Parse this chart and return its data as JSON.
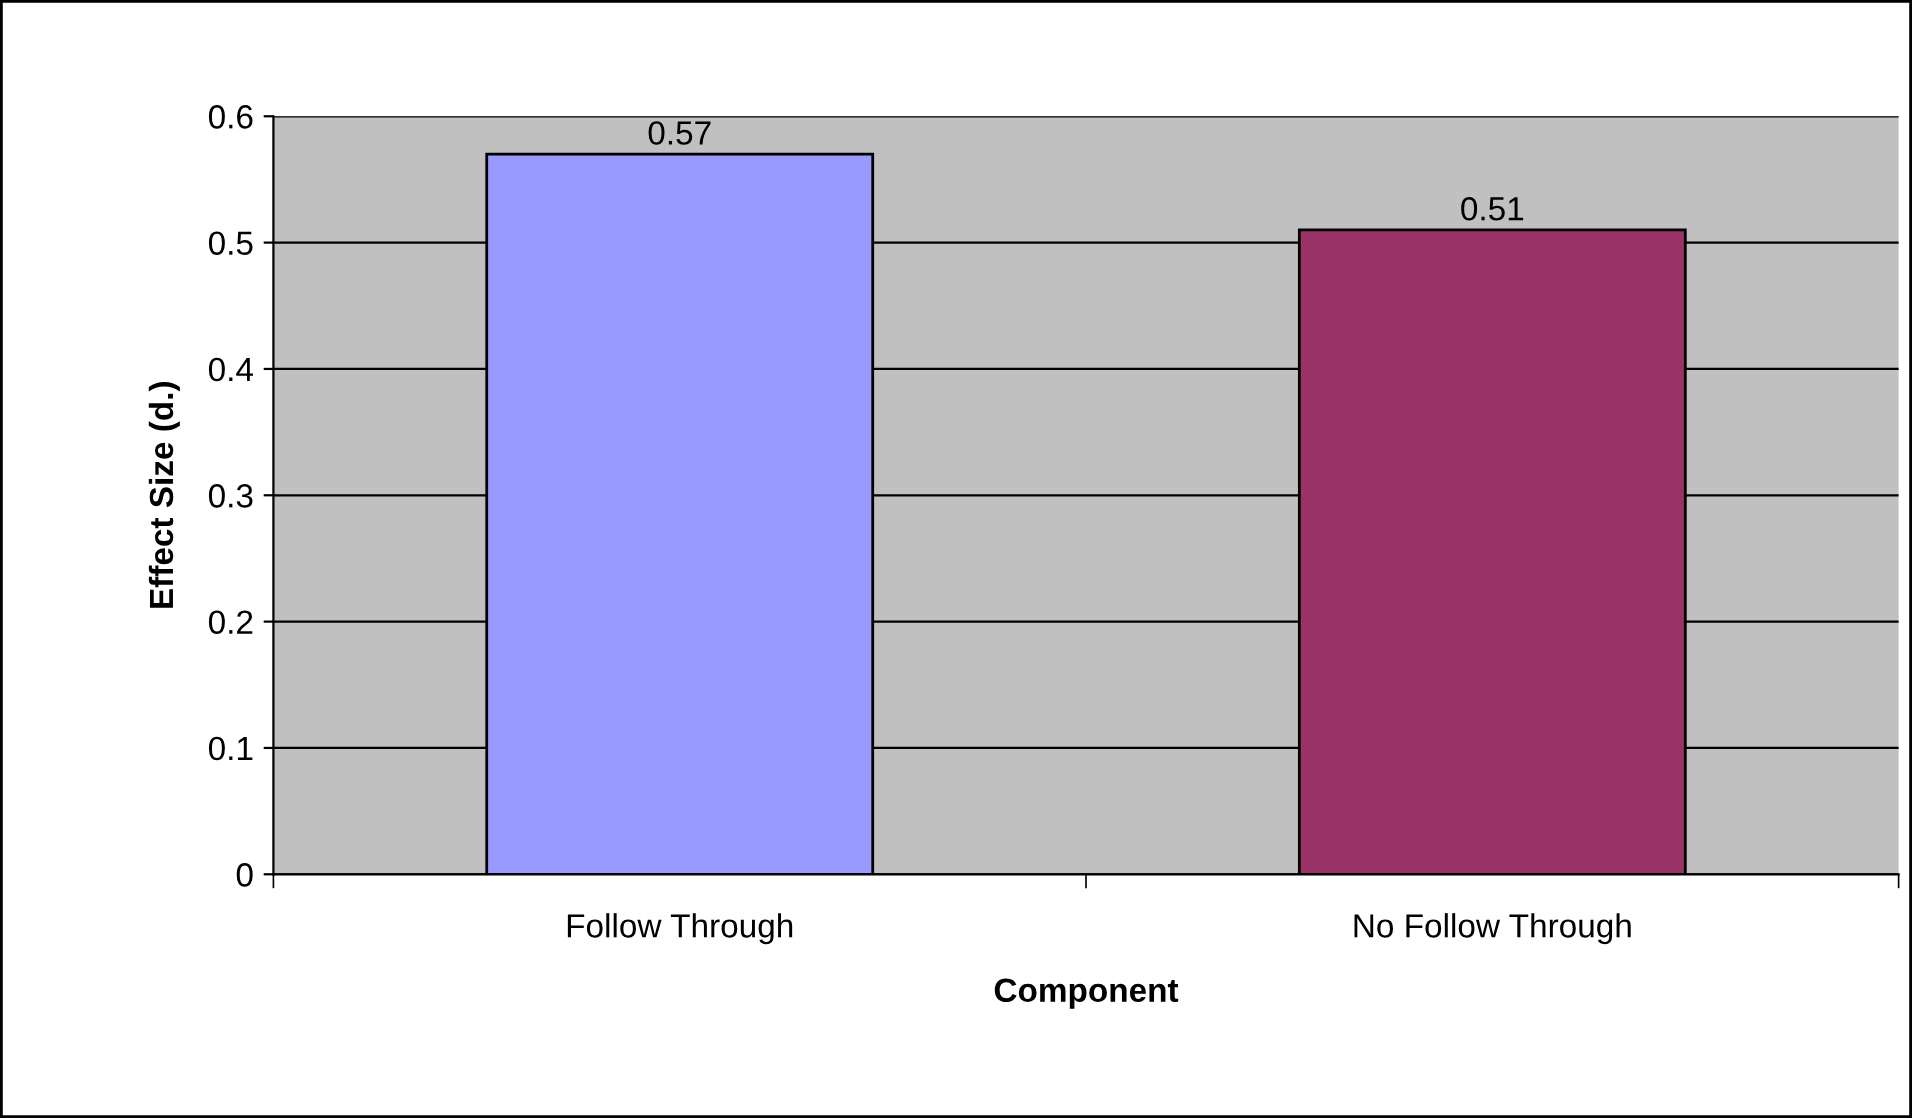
{
  "chart_data": {
    "type": "bar",
    "xlabel": "Component",
    "ylabel": "Effect Size (d.)",
    "categories": [
      "Follow Through",
      "No Follow Through"
    ],
    "values": [
      0.57,
      0.51
    ],
    "colors": [
      "#9999ff",
      "#993366"
    ],
    "ylim": [
      0,
      0.6
    ],
    "yticks": [
      0,
      0.1,
      0.2,
      0.3,
      0.4,
      0.5,
      0.6
    ],
    "grid": "y",
    "data_labels": true,
    "legend": false
  }
}
